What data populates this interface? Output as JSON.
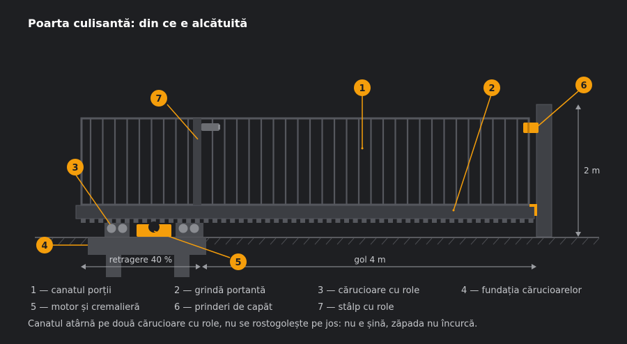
{
  "title": "Poarta culisantă: din ce e alcătuită",
  "callouts": [
    "1",
    "2",
    "3",
    "4",
    "5",
    "6",
    "7"
  ],
  "dimensions": {
    "height": "2 m",
    "retraction": "retragere 40 %",
    "opening": "gol 4 m"
  },
  "legend": [
    "1 — canatul porții",
    "2 — grindă portantă",
    "3 — cărucioare cu role",
    "4 — fundația cărucioarelor",
    "5 — motor și cremalieră",
    "6 — prinderi de capăt",
    "7 — stâlp cu role"
  ],
  "caption": "Canatul atârnă pe două cărucioare cu role, nu se rostogolește pe jos: nu e șină, zăpada nu încurcă.",
  "colors": {
    "background": "#1e1f22",
    "frame": "#55575d",
    "accent": "#f59e0b",
    "text": "#c9cbcf"
  }
}
